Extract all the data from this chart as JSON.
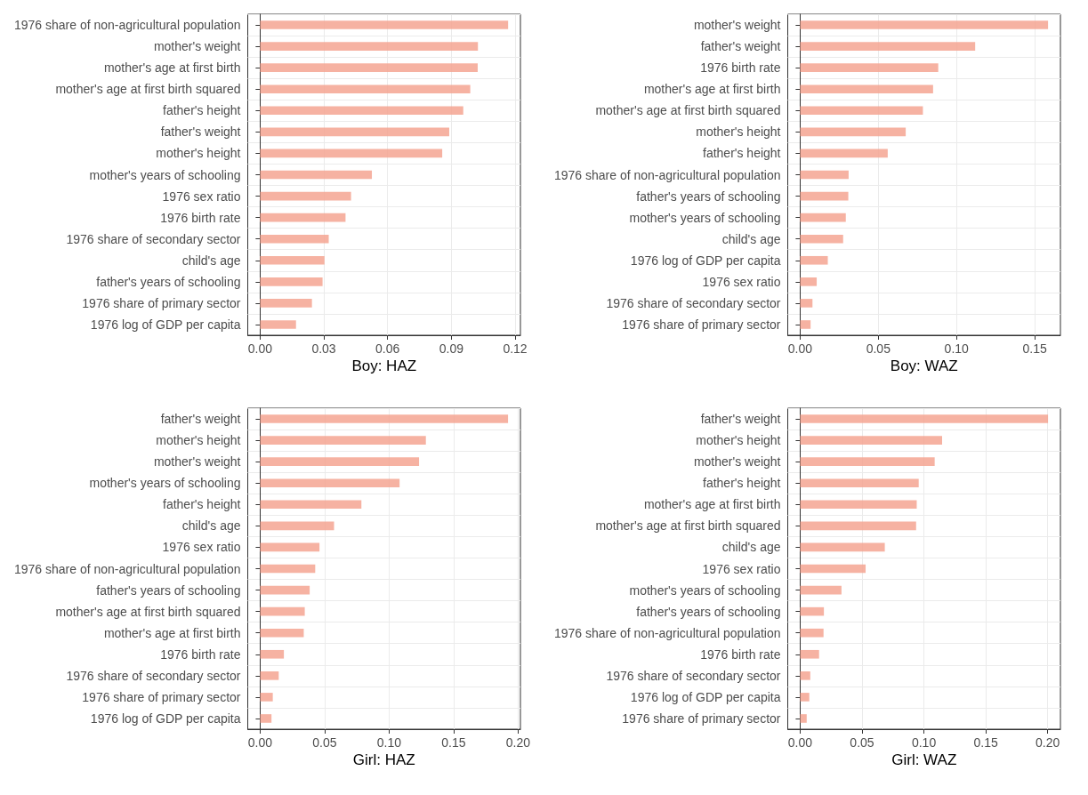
{
  "chart_data": [
    {
      "type": "bar",
      "orientation": "horizontal",
      "xlabel": "Boy: HAZ",
      "categories": [
        "1976 share of non-agricultural population",
        "mother's weight",
        "mother's age at first birth",
        "mother's age at first birth squared",
        "father's height",
        "father's weight",
        "mother's height",
        "mother's years of schooling",
        "1976 sex ratio",
        "1976 birth rate",
        "1976 share of secondary sector",
        "child's age",
        "father's years of schooling",
        "1976 share of primary sector",
        "1976 log of GDP per capita"
      ],
      "values": [
        0.1167,
        0.1025,
        0.1024,
        0.0989,
        0.0956,
        0.089,
        0.0857,
        0.0526,
        0.0428,
        0.0402,
        0.0323,
        0.0303,
        0.0294,
        0.0244,
        0.0169
      ],
      "color": "#f4a492",
      "xlim": [
        -0.0058,
        0.1225
      ],
      "xticks": [
        {
          "value": 0,
          "label": "0.00"
        },
        {
          "value": 0.03,
          "label": "0.03"
        },
        {
          "value": 0.06,
          "label": "0.06"
        },
        {
          "value": 0.09,
          "label": "0.09"
        },
        {
          "value": 0.12,
          "label": "0.12"
        }
      ],
      "grid": true
    },
    {
      "type": "bar",
      "orientation": "horizontal",
      "xlabel": "Boy: WAZ",
      "categories": [
        "mother's weight",
        "father's weight",
        "1976 birth rate",
        "mother's age at first birth",
        "mother's age at first birth squared",
        "mother's height",
        "father's height",
        "1976 share of non-agricultural population",
        "father's years of schooling",
        "mother's years of schooling",
        "child's age",
        "1976 log of GDP per capita",
        "1976 sex ratio",
        "1976 share of secondary sector",
        "1976 share of primary sector"
      ],
      "values": [
        0.1585,
        0.1119,
        0.0883,
        0.085,
        0.0785,
        0.0675,
        0.056,
        0.031,
        0.0308,
        0.0292,
        0.0275,
        0.0177,
        0.0106,
        0.0079,
        0.0067
      ],
      "color": "#f4a492",
      "xlim": [
        -0.0079,
        0.1664
      ],
      "xticks": [
        {
          "value": 0,
          "label": "0.00"
        },
        {
          "value": 0.05,
          "label": "0.05"
        },
        {
          "value": 0.1,
          "label": "0.10"
        },
        {
          "value": 0.15,
          "label": "0.15"
        }
      ],
      "grid": true
    },
    {
      "type": "bar",
      "orientation": "horizontal",
      "xlabel": "Girl: HAZ",
      "categories": [
        "father's weight",
        "mother's height",
        "mother's weight",
        "mother's years of schooling",
        "father's height",
        "child's age",
        "1976 sex ratio",
        "1976 share of non-agricultural population",
        "father's years of schooling",
        "mother's age at first birth squared",
        "mother's age at first birth",
        "1976 birth rate",
        "1976 share of secondary sector",
        "1976 share of primary sector",
        "1976 log of GDP per capita"
      ],
      "values": [
        0.1922,
        0.1285,
        0.1232,
        0.1081,
        0.0785,
        0.0573,
        0.046,
        0.0427,
        0.0384,
        0.0346,
        0.0338,
        0.0184,
        0.0144,
        0.0098,
        0.0088
      ],
      "color": "#f4a492",
      "xlim": [
        -0.0096,
        0.2018
      ],
      "xticks": [
        {
          "value": 0,
          "label": "0.00"
        },
        {
          "value": 0.05,
          "label": "0.05"
        },
        {
          "value": 0.1,
          "label": "0.10"
        },
        {
          "value": 0.15,
          "label": "0.15"
        },
        {
          "value": 0.2,
          "label": "0.20"
        }
      ],
      "grid": true
    },
    {
      "type": "bar",
      "orientation": "horizontal",
      "xlabel": "Girl: WAZ",
      "categories": [
        "father's weight",
        "mother's height",
        "mother's weight",
        "father's height",
        "mother's age at first birth",
        "mother's age at first birth squared",
        "child's age",
        "1976 sex ratio",
        "mother's years of schooling",
        "father's years of schooling",
        "1976 share of non-agricultural population",
        "1976 birth rate",
        "1976 share of secondary sector",
        "1976 log of GDP per capita",
        "1976 share of primary sector"
      ],
      "values": [
        0.2003,
        0.1147,
        0.1087,
        0.0958,
        0.0942,
        0.0937,
        0.0684,
        0.0529,
        0.0334,
        0.0192,
        0.0189,
        0.0153,
        0.0082,
        0.0074,
        0.0053
      ],
      "color": "#f4a492",
      "xlim": [
        -0.01,
        0.2103
      ],
      "xticks": [
        {
          "value": 0,
          "label": "0.00"
        },
        {
          "value": 0.05,
          "label": "0.05"
        },
        {
          "value": 0.1,
          "label": "0.10"
        },
        {
          "value": 0.15,
          "label": "0.15"
        },
        {
          "value": 0.2,
          "label": "0.20"
        }
      ],
      "grid": true
    }
  ]
}
